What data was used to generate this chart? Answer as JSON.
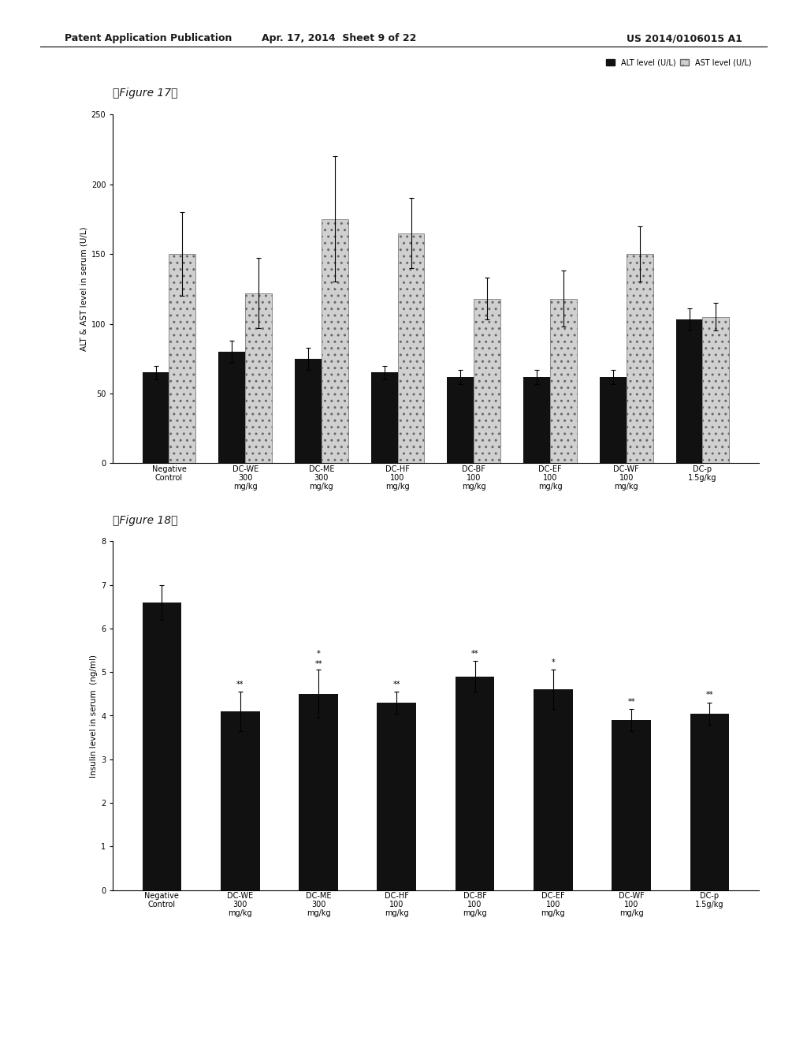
{
  "fig17": {
    "title": "【Figure 17】",
    "ylabel": "ALT & AST level in serum (U/L)",
    "ylim": [
      0,
      250
    ],
    "yticks": [
      0,
      50,
      100,
      150,
      200,
      250
    ],
    "categories": [
      "Negative\nControl",
      "DC-WE\n300\nmg/kg",
      "DC-ME\n300\nmg/kg",
      "DC-HF\n100\nmg/kg",
      "DC-BF\n100\nmg/kg",
      "DC-EF\n100\nmg/kg",
      "DC-WF\n100\nmg/kg",
      "DC-p\n1.5g/kg"
    ],
    "alt_values": [
      65,
      80,
      75,
      65,
      62,
      62,
      62,
      103
    ],
    "ast_values": [
      150,
      122,
      175,
      165,
      118,
      118,
      150,
      105
    ],
    "alt_errors": [
      5,
      8,
      8,
      5,
      5,
      5,
      5,
      8
    ],
    "ast_errors": [
      30,
      25,
      45,
      25,
      15,
      20,
      20,
      10
    ],
    "alt_color": "#111111",
    "ast_color": "#d0d0d0",
    "ast_hatch": "..",
    "legend_labels": [
      "ALT level (U/L)",
      "AST level (U/L)"
    ],
    "bar_width": 0.35
  },
  "fig18": {
    "title": "【Figure 18】",
    "ylabel": "Insulin level in serum  (ng/ml)",
    "ylim": [
      0,
      8
    ],
    "yticks": [
      0,
      1,
      2,
      3,
      4,
      5,
      6,
      7,
      8
    ],
    "categories": [
      "Negative\nControl",
      "DC-WE\n300\nmg/kg",
      "DC-ME\n300\nmg/kg",
      "DC-HF\n100\nmg/kg",
      "DC-BF\n100\nmg/kg",
      "DC-EF\n100\nmg/kg",
      "DC-WF\n100\nmg/kg",
      "DC-p\n1.5g/kg"
    ],
    "values": [
      6.6,
      4.1,
      4.5,
      4.3,
      4.9,
      4.6,
      3.9,
      4.05
    ],
    "errors": [
      0.4,
      0.45,
      0.55,
      0.25,
      0.35,
      0.45,
      0.25,
      0.25
    ],
    "bar_color": "#111111",
    "significance_top": [
      "",
      "",
      "*",
      "",
      "**",
      "*",
      "",
      ""
    ],
    "significance_bot": [
      "",
      "**",
      "**",
      "**",
      "",
      "",
      "**",
      "**"
    ],
    "bar_width": 0.5
  },
  "background_color": "#ffffff",
  "header_left": "Patent Application Publication",
  "header_mid": "Apr. 17, 2014  Sheet 9 of 22",
  "header_right": "US 2014/0106015 A1",
  "font_size": 8,
  "title_font_size": 10
}
